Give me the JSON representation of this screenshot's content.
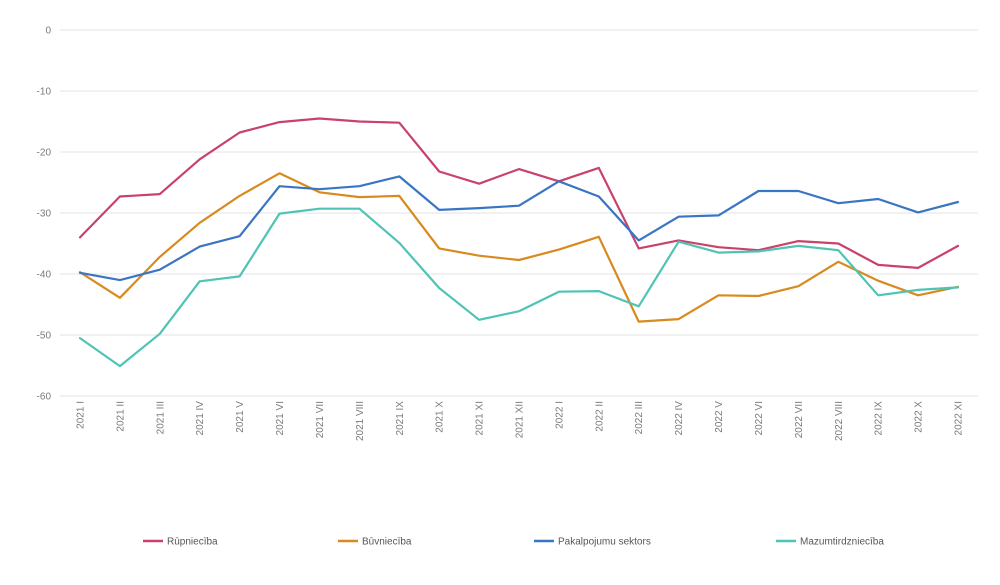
{
  "chart_data": {
    "type": "line",
    "categories": [
      "2021 I",
      "2021 II",
      "2021 III",
      "2021 IV",
      "2021 V",
      "2021 VI",
      "2021 VII",
      "2021 VIII",
      "2021 IX",
      "2021 X",
      "2021 XI",
      "2021 XII",
      "2022 I",
      "2022 II",
      "2022 III",
      "2022 IV",
      "2022 V",
      "2022 VI",
      "2022 VII",
      "2022 VIII",
      "2022 IX",
      "2022 X",
      "2022 XI"
    ],
    "ylim": [
      -60,
      0
    ],
    "yticks": [
      0,
      -10,
      -20,
      -30,
      -40,
      -50,
      -60
    ],
    "grid": true,
    "legend_position": "bottom",
    "series": [
      {
        "name": "Rūpniecība",
        "color": "#c9426b",
        "values": [
          -34,
          -27.3,
          -26.9,
          -21.2,
          -16.8,
          -15.1,
          -14.5,
          -15,
          -15.2,
          -23.2,
          -25.2,
          -22.8,
          -24.8,
          -22.6,
          -35.8,
          -34.5,
          -35.6,
          -36.1,
          -34.6,
          -35,
          -38.5,
          -39,
          -35.4
        ]
      },
      {
        "name": "Būvniecība",
        "color": "#d98a1f",
        "values": [
          -39.7,
          -43.9,
          -37.2,
          -31.6,
          -27.2,
          -23.5,
          -26.6,
          -27.4,
          -27.2,
          -35.8,
          -37,
          -37.7,
          -36,
          -33.9,
          -47.8,
          -47.4,
          -43.5,
          -43.6,
          -42,
          -38,
          -41.1,
          -43.5,
          -42.1
        ]
      },
      {
        "name": "Pakalpojumu sektors",
        "color": "#3a75c4",
        "values": [
          -39.8,
          -41,
          -39.3,
          -35.5,
          -33.8,
          -25.6,
          -26.1,
          -25.6,
          -24,
          -29.5,
          -29.2,
          -28.8,
          -24.8,
          -27.3,
          -34.5,
          -30.6,
          -30.4,
          -26.4,
          -26.4,
          -28.4,
          -27.7,
          -29.9,
          -28.2
        ]
      },
      {
        "name": "Mazumtirdzniecība",
        "color": "#4fc4b5",
        "values": [
          -50.5,
          -55.1,
          -49.8,
          -41.2,
          -40.4,
          -30.1,
          -29.3,
          -29.3,
          -34.9,
          -42.3,
          -47.5,
          -46.1,
          -42.9,
          -42.8,
          -45.3,
          -34.7,
          -36.5,
          -36.3,
          -35.4,
          -36.1,
          -43.5,
          -42.6,
          -42.2
        ]
      }
    ]
  }
}
